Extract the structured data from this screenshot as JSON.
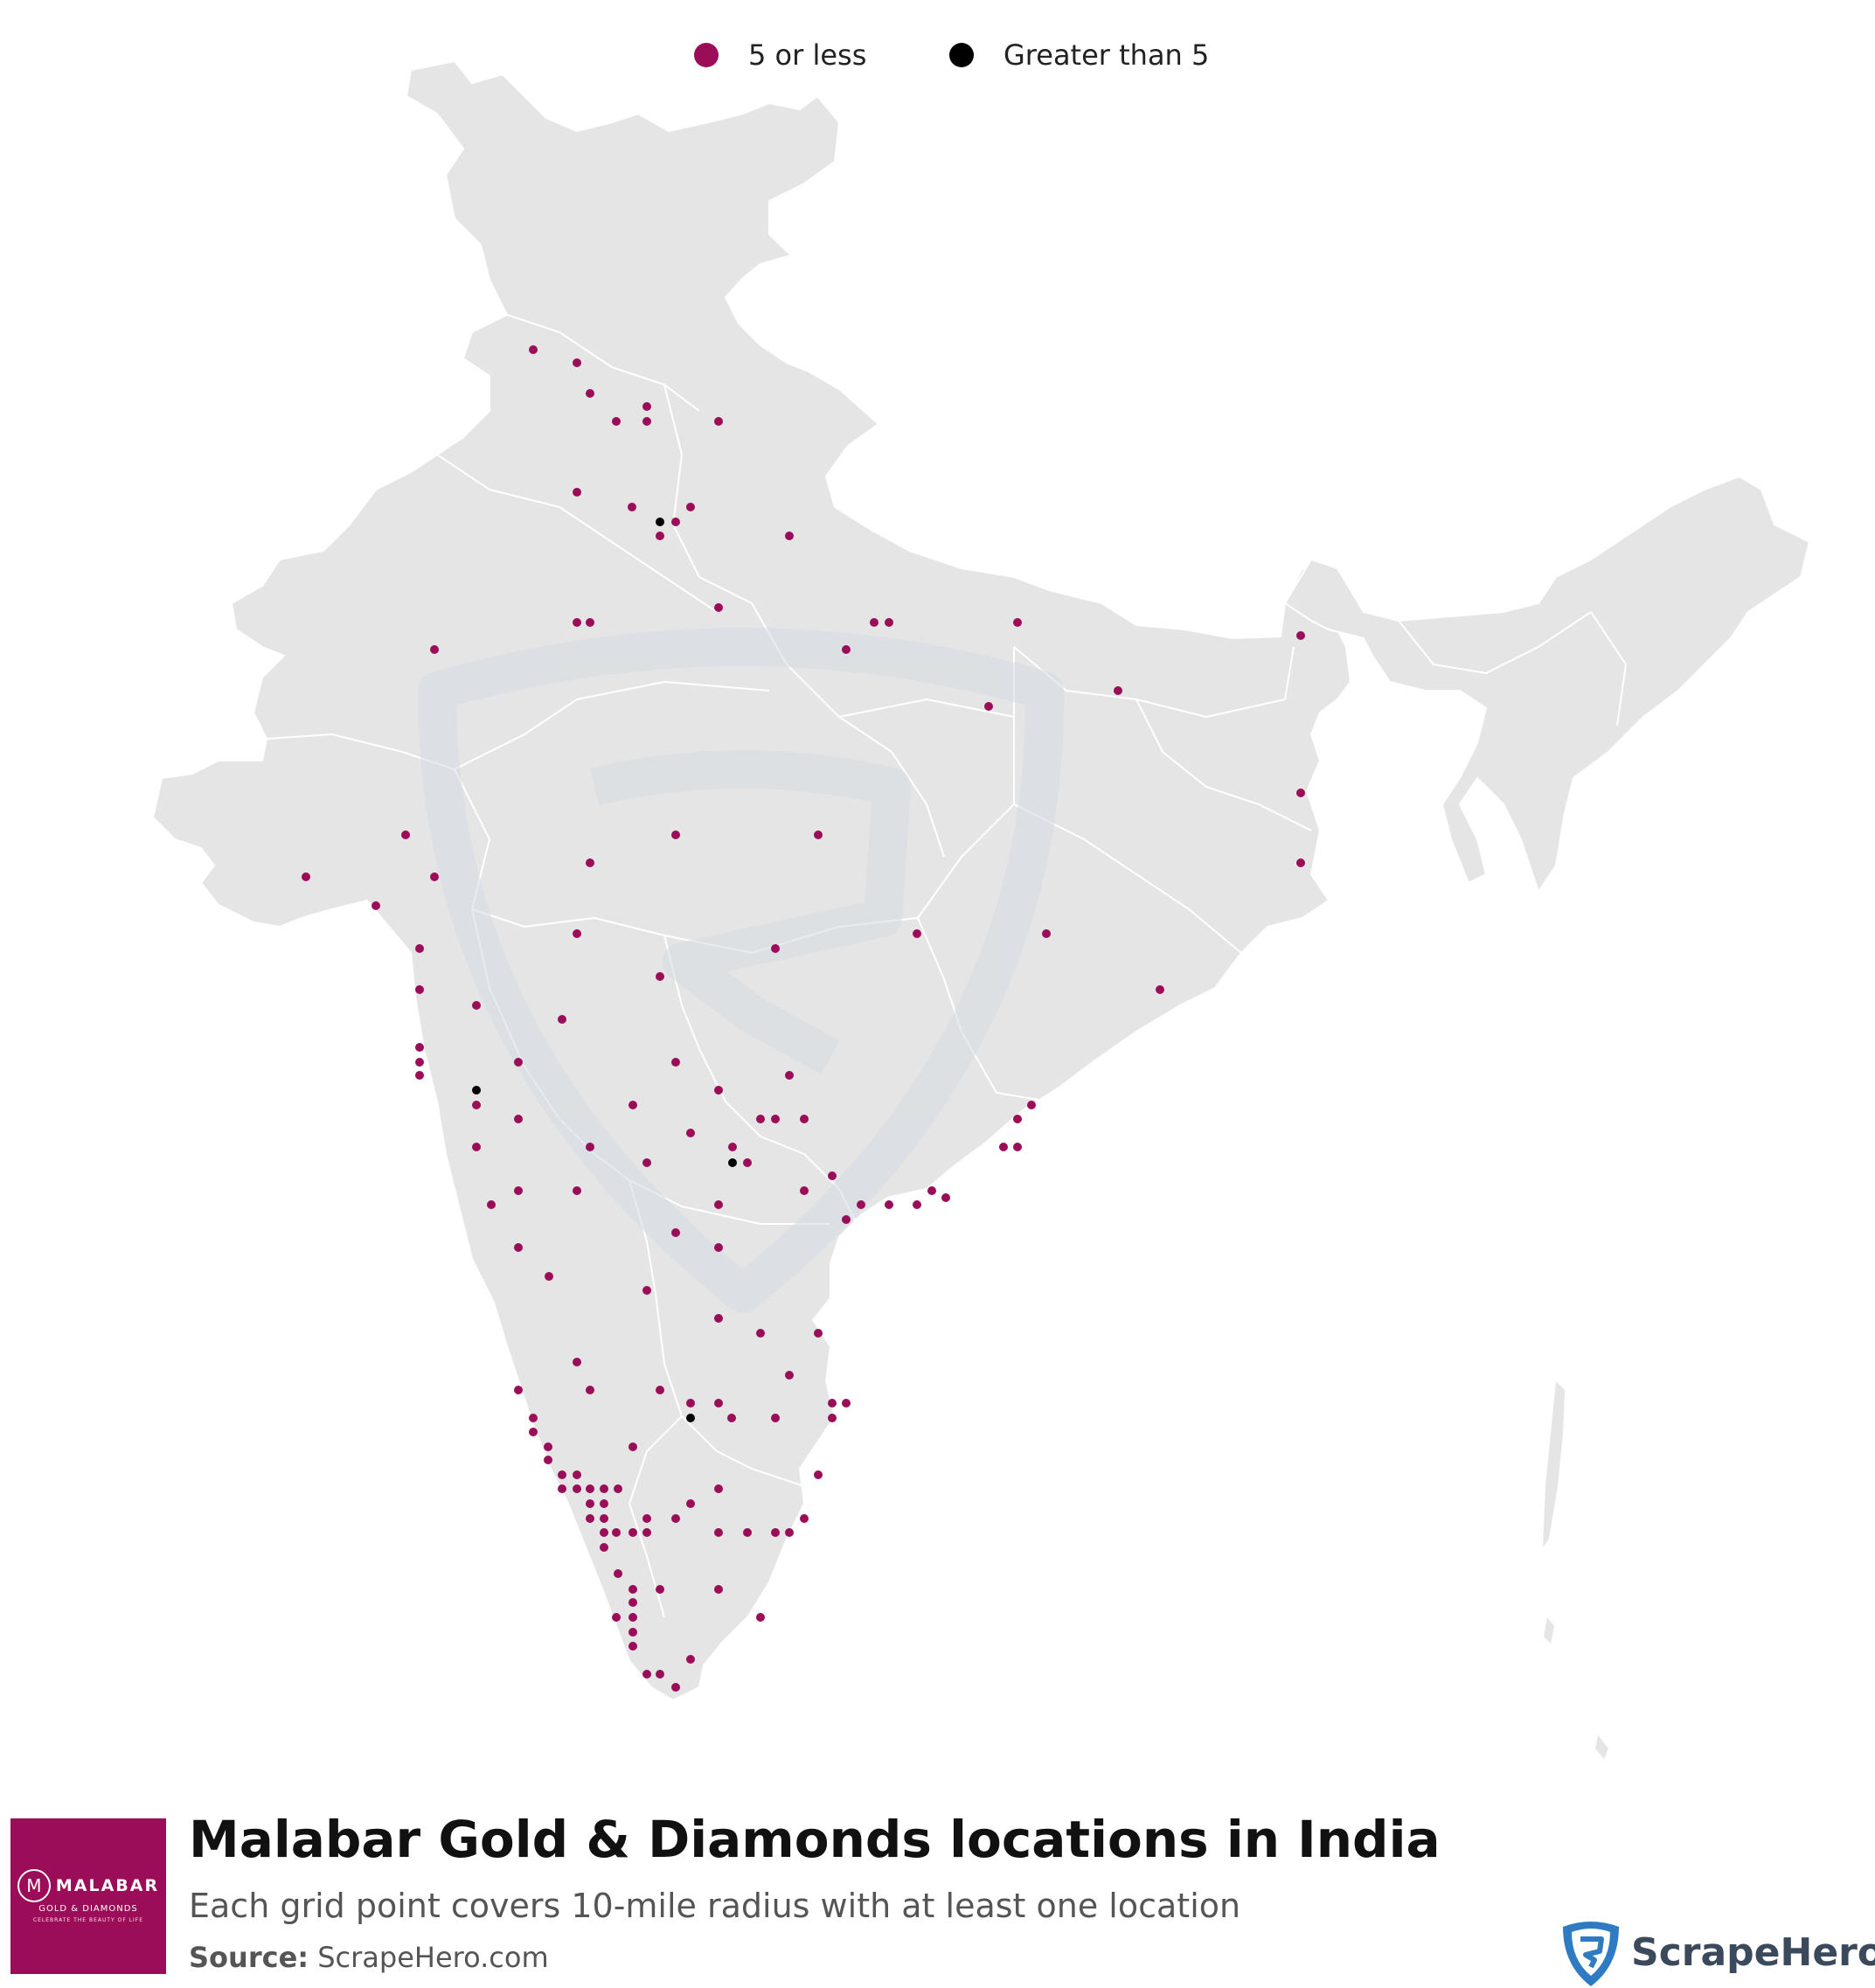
{
  "legend": {
    "items": [
      {
        "label": "5 or less",
        "color": "#9b0d58"
      },
      {
        "label": "Greater than 5",
        "color": "#000000"
      }
    ]
  },
  "footer": {
    "title": "Malabar Gold & Diamonds locations in India",
    "subtitle": "Each grid point covers 10-mile radius with at least one location",
    "source_label": "Source:",
    "source_value": "ScrapeHero.com",
    "brand_logo": {
      "name": "MALABAR",
      "sub": "GOLD & DIAMONDS",
      "tagline": "CELEBRATE THE BEAUTY OF LIFE",
      "monogram": "M",
      "color": "#9b0d58"
    },
    "watermark_brand": "ScrapeHero"
  },
  "map": {
    "land_color": "#e5e5e5",
    "border_color": "#ffffff",
    "watermark_icon": "scrapehero-shield-icon",
    "points": [
      [
        610,
        400,
        0
      ],
      [
        660,
        415,
        0
      ],
      [
        675,
        450,
        0
      ],
      [
        705,
        482,
        0
      ],
      [
        740,
        465,
        0
      ],
      [
        740,
        482,
        0
      ],
      [
        822,
        482,
        0
      ],
      [
        660,
        563,
        0
      ],
      [
        723,
        580,
        0
      ],
      [
        755,
        597,
        1
      ],
      [
        773,
        597,
        0
      ],
      [
        790,
        580,
        0
      ],
      [
        755,
        613,
        0
      ],
      [
        903,
        613,
        0
      ],
      [
        660,
        712,
        0
      ],
      [
        675,
        712,
        0
      ],
      [
        822,
        695,
        0
      ],
      [
        1000,
        712,
        0
      ],
      [
        1017,
        712,
        0
      ],
      [
        1164,
        712,
        0
      ],
      [
        497,
        743,
        0
      ],
      [
        968,
        743,
        0
      ],
      [
        1131,
        808,
        0
      ],
      [
        1279,
        790,
        0
      ],
      [
        1488,
        727,
        0
      ],
      [
        464,
        955,
        0
      ],
      [
        350,
        1003,
        0
      ],
      [
        497,
        1003,
        0
      ],
      [
        430,
        1036,
        0
      ],
      [
        675,
        987,
        0
      ],
      [
        773,
        955,
        0
      ],
      [
        936,
        955,
        0
      ],
      [
        1488,
        907,
        0
      ],
      [
        1488,
        987,
        0
      ],
      [
        480,
        1085,
        0
      ],
      [
        660,
        1068,
        0
      ],
      [
        887,
        1085,
        0
      ],
      [
        1049,
        1068,
        0
      ],
      [
        1197,
        1068,
        0
      ],
      [
        755,
        1117,
        0
      ],
      [
        1327,
        1132,
        0
      ],
      [
        480,
        1132,
        0
      ],
      [
        545,
        1150,
        0
      ],
      [
        643,
        1166,
        0
      ],
      [
        480,
        1198,
        0
      ],
      [
        480,
        1215,
        0
      ],
      [
        480,
        1230,
        0
      ],
      [
        593,
        1215,
        0
      ],
      [
        773,
        1215,
        0
      ],
      [
        903,
        1230,
        0
      ],
      [
        545,
        1247,
        1
      ],
      [
        545,
        1264,
        0
      ],
      [
        593,
        1280,
        0
      ],
      [
        724,
        1264,
        0
      ],
      [
        822,
        1247,
        0
      ],
      [
        870,
        1280,
        0
      ],
      [
        887,
        1280,
        0
      ],
      [
        920,
        1280,
        0
      ],
      [
        1164,
        1280,
        0
      ],
      [
        1180,
        1264,
        0
      ],
      [
        545,
        1312,
        0
      ],
      [
        675,
        1312,
        0
      ],
      [
        740,
        1330,
        0
      ],
      [
        790,
        1296,
        0
      ],
      [
        838,
        1312,
        0
      ],
      [
        838,
        1330,
        1
      ],
      [
        855,
        1330,
        0
      ],
      [
        1148,
        1312,
        0
      ],
      [
        1164,
        1312,
        0
      ],
      [
        593,
        1362,
        0
      ],
      [
        660,
        1362,
        0
      ],
      [
        822,
        1378,
        0
      ],
      [
        920,
        1362,
        0
      ],
      [
        952,
        1345,
        0
      ],
      [
        985,
        1378,
        0
      ],
      [
        1017,
        1378,
        0
      ],
      [
        1049,
        1378,
        0
      ],
      [
        1066,
        1362,
        0
      ],
      [
        1082,
        1370,
        0
      ],
      [
        562,
        1378,
        0
      ],
      [
        773,
        1410,
        0
      ],
      [
        968,
        1395,
        0
      ],
      [
        822,
        1427,
        0
      ],
      [
        593,
        1427,
        0
      ],
      [
        628,
        1460,
        0
      ],
      [
        740,
        1476,
        0
      ],
      [
        822,
        1508,
        0
      ],
      [
        660,
        1558,
        0
      ],
      [
        870,
        1525,
        0
      ],
      [
        936,
        1525,
        0
      ],
      [
        593,
        1590,
        0
      ],
      [
        675,
        1590,
        0
      ],
      [
        755,
        1590,
        0
      ],
      [
        790,
        1605,
        0
      ],
      [
        822,
        1605,
        0
      ],
      [
        790,
        1622,
        1
      ],
      [
        903,
        1573,
        0
      ],
      [
        952,
        1605,
        0
      ],
      [
        952,
        1622,
        0
      ],
      [
        968,
        1605,
        0
      ],
      [
        887,
        1622,
        0
      ],
      [
        837,
        1622,
        0
      ],
      [
        610,
        1622,
        0
      ],
      [
        610,
        1638,
        0
      ],
      [
        724,
        1655,
        0
      ],
      [
        627,
        1655,
        0
      ],
      [
        627,
        1670,
        0
      ],
      [
        643,
        1687,
        0
      ],
      [
        643,
        1703,
        0
      ],
      [
        660,
        1687,
        0
      ],
      [
        660,
        1703,
        0
      ],
      [
        675,
        1703,
        0
      ],
      [
        691,
        1703,
        0
      ],
      [
        707,
        1703,
        0
      ],
      [
        675,
        1720,
        0
      ],
      [
        675,
        1737,
        0
      ],
      [
        691,
        1720,
        0
      ],
      [
        691,
        1737,
        0
      ],
      [
        691,
        1753,
        0
      ],
      [
        705,
        1753,
        0
      ],
      [
        724,
        1753,
        0
      ],
      [
        740,
        1753,
        0
      ],
      [
        740,
        1737,
        0
      ],
      [
        773,
        1737,
        0
      ],
      [
        790,
        1720,
        0
      ],
      [
        822,
        1703,
        0
      ],
      [
        822,
        1753,
        0
      ],
      [
        855,
        1753,
        0
      ],
      [
        887,
        1753,
        0
      ],
      [
        903,
        1753,
        0
      ],
      [
        920,
        1737,
        0
      ],
      [
        936,
        1687,
        0
      ],
      [
        691,
        1770,
        0
      ],
      [
        707,
        1800,
        0
      ],
      [
        724,
        1818,
        0
      ],
      [
        724,
        1833,
        0
      ],
      [
        724,
        1850,
        0
      ],
      [
        755,
        1818,
        0
      ],
      [
        705,
        1850,
        0
      ],
      [
        724,
        1867,
        0
      ],
      [
        724,
        1883,
        0
      ],
      [
        740,
        1915,
        0
      ],
      [
        755,
        1915,
        0
      ],
      [
        773,
        1930,
        0
      ],
      [
        790,
        1898,
        0
      ],
      [
        822,
        1818,
        0
      ],
      [
        870,
        1850,
        0
      ]
    ]
  }
}
